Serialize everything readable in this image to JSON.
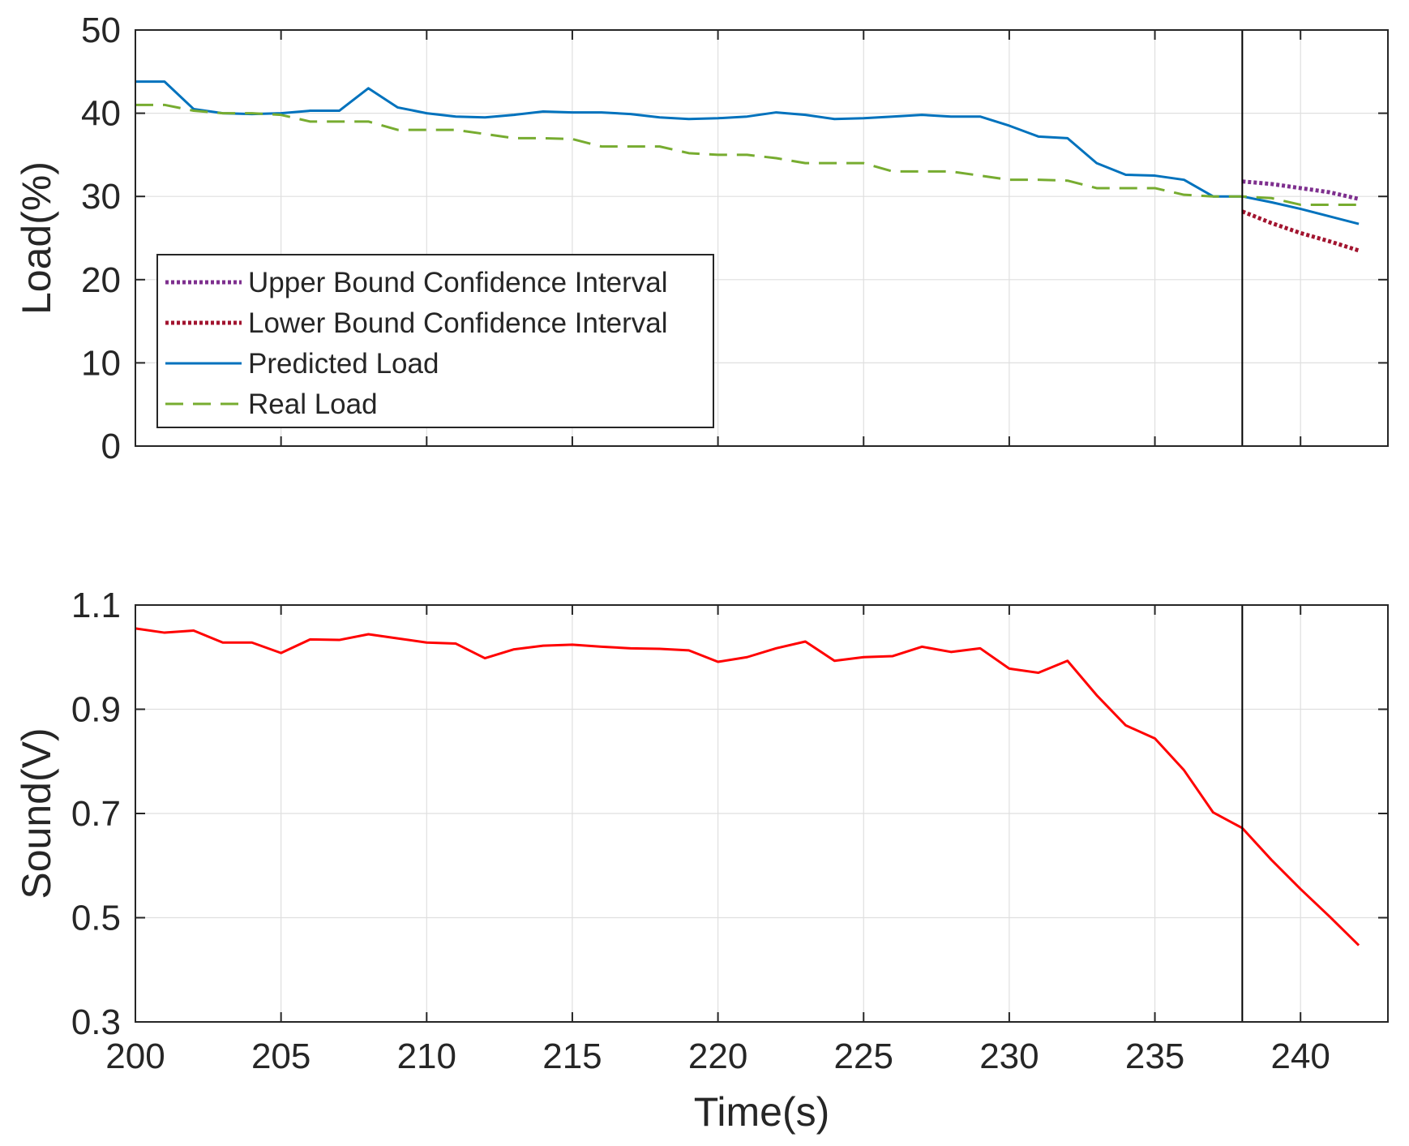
{
  "chart_data": [
    {
      "type": "line",
      "xlabel": "",
      "ylabel": "Load(%)",
      "xlim": [
        200,
        243
      ],
      "ylim": [
        0,
        50
      ],
      "xticks": [
        200,
        205,
        210,
        215,
        220,
        225,
        230,
        235,
        240
      ],
      "yticks": [
        0,
        10,
        20,
        30,
        40,
        50
      ],
      "show_xticklabels": false,
      "grid": true,
      "legend_position": "lower-left",
      "vline_x": 238,
      "series": [
        {
          "name": "Upper Bound Confidence Interval",
          "color": "#7E2F8E",
          "style": "dotted",
          "x": [
            238,
            239,
            240,
            241,
            242
          ],
          "y": [
            31.8,
            31.5,
            31,
            30.5,
            29.7
          ]
        },
        {
          "name": "Lower Bound Confidence Interval",
          "color": "#A2142F",
          "style": "dotted",
          "x": [
            238,
            239,
            240,
            241,
            242
          ],
          "y": [
            28.2,
            26.8,
            25.6,
            24.6,
            23.5
          ]
        },
        {
          "name": "Predicted Load",
          "color": "#0072BD",
          "style": "solid",
          "x": [
            200,
            201,
            202,
            203,
            204,
            205,
            206,
            207,
            208,
            209,
            210,
            211,
            212,
            213,
            214,
            215,
            216,
            217,
            218,
            219,
            220,
            221,
            222,
            223,
            224,
            225,
            226,
            227,
            228,
            229,
            230,
            231,
            232,
            233,
            234,
            235,
            236,
            237,
            238,
            239,
            240,
            241,
            242
          ],
          "y": [
            43.8,
            43.8,
            40.5,
            40,
            39.9,
            40,
            40.3,
            40.3,
            43,
            40.7,
            40,
            39.6,
            39.5,
            39.8,
            40.2,
            40.1,
            40.1,
            39.9,
            39.5,
            39.3,
            39.4,
            39.6,
            40.1,
            39.8,
            39.3,
            39.4,
            39.6,
            39.8,
            39.6,
            39.6,
            38.5,
            37.2,
            37,
            34,
            32.6,
            32.5,
            32,
            30,
            30,
            29.3,
            28.5,
            27.6,
            26.7
          ]
        },
        {
          "name": "Real Load",
          "color": "#77AC30",
          "style": "dashed",
          "x": [
            200,
            201,
            202,
            203,
            204,
            205,
            206,
            207,
            208,
            209,
            210,
            211,
            212,
            213,
            214,
            215,
            216,
            217,
            218,
            219,
            220,
            221,
            222,
            223,
            224,
            225,
            226,
            227,
            228,
            229,
            230,
            231,
            232,
            233,
            234,
            235,
            236,
            237,
            238,
            239,
            240,
            241,
            242
          ],
          "y": [
            41,
            41,
            40.3,
            40,
            40,
            39.8,
            39,
            39,
            39,
            38,
            38,
            38,
            37.5,
            37,
            37,
            36.9,
            36,
            36,
            36,
            35.2,
            35,
            35,
            34.6,
            34,
            34,
            34,
            33,
            33,
            33,
            32.5,
            32,
            32,
            31.9,
            31,
            31,
            31,
            30.2,
            30,
            30,
            29.8,
            29,
            29,
            29
          ]
        }
      ]
    },
    {
      "type": "line",
      "xlabel": "Time(s)",
      "ylabel": "Sound(V)",
      "xlim": [
        200,
        243
      ],
      "ylim": [
        0.3,
        1.1
      ],
      "xticks": [
        200,
        205,
        210,
        215,
        220,
        225,
        230,
        235,
        240
      ],
      "yticks": [
        "0.3",
        "0.5",
        "0.7",
        "0.9",
        "1.1"
      ],
      "show_xticklabels": true,
      "grid": true,
      "vline_x": 238,
      "series": [
        {
          "color": "#FF0000",
          "style": "solid",
          "x": [
            200,
            201,
            202,
            203,
            204,
            205,
            206,
            207,
            208,
            209,
            210,
            211,
            212,
            213,
            214,
            215,
            216,
            217,
            218,
            219,
            220,
            221,
            222,
            223,
            224,
            225,
            226,
            227,
            228,
            229,
            230,
            231,
            232,
            233,
            234,
            235,
            236,
            237,
            238,
            239,
            240,
            241,
            242
          ],
          "y": [
            1.055,
            1.047,
            1.051,
            1.028,
            1.028,
            1.008,
            1.034,
            1.033,
            1.044,
            1.036,
            1.028,
            1.026,
            0.998,
            1.015,
            1.022,
            1.024,
            1.02,
            1.017,
            1.016,
            1.013,
            0.991,
            1.0,
            1.017,
            1.03,
            0.993,
            1.0,
            1.002,
            1.02,
            1.01,
            1.017,
            0.978,
            0.97,
            0.993,
            0.927,
            0.869,
            0.844,
            0.783,
            0.702,
            0.672,
            0.611,
            0.555,
            0.502,
            0.447
          ]
        }
      ]
    }
  ]
}
